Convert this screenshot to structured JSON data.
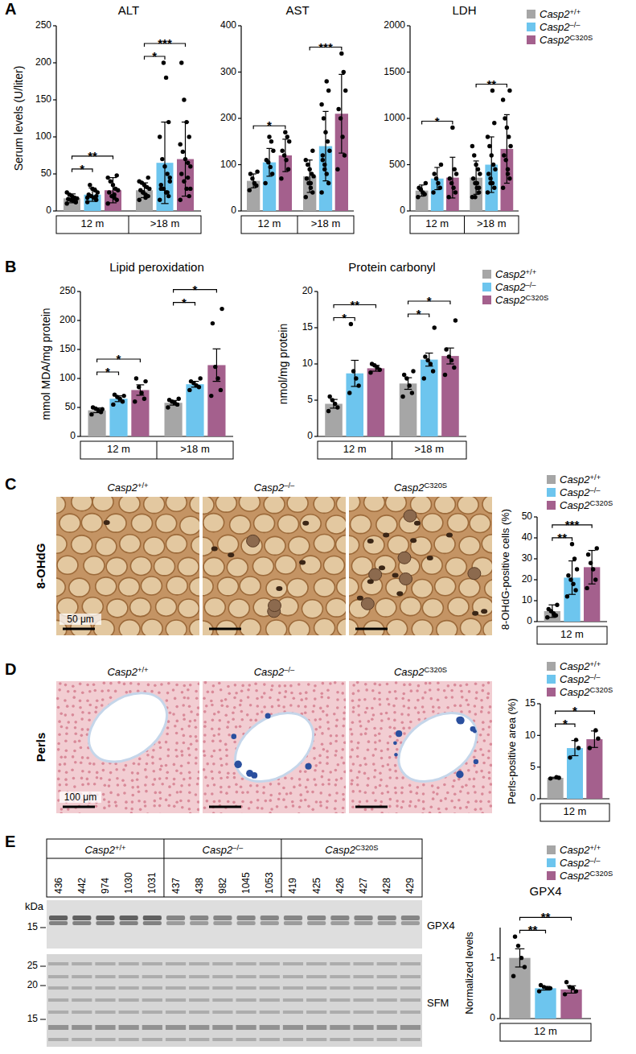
{
  "panels": [
    "A",
    "B",
    "C",
    "D",
    "E"
  ],
  "chart_data": [
    {
      "type": "bar",
      "title": "ALT",
      "ylabel": "Serum levels (U/liter)",
      "categories": [
        "12 m",
        ">18 m"
      ],
      "ylim": [
        0,
        250
      ],
      "yticks": [
        0,
        50,
        100,
        150,
        200,
        250
      ],
      "series": [
        {
          "color": "#a6a6a6",
          "values": [
            17,
            28
          ],
          "errors": [
            6,
            10
          ],
          "points": [
            [
              10,
              12,
              14,
              15,
              16,
              17,
              18,
              20,
              22,
              25,
              12,
              14
            ],
            [
              15,
              20,
              22,
              25,
              28,
              30,
              32,
              35,
              38,
              40,
              45,
              18,
              25
            ]
          ]
        },
        {
          "color": "#6dc5ee",
          "values": [
            22,
            65
          ],
          "errors": [
            9,
            55
          ],
          "points": [
            [
              12,
              15,
              18,
              20,
              22,
              25,
              28,
              30,
              35,
              18,
              20
            ],
            [
              15,
              20,
              25,
              30,
              35,
              40,
              50,
              60,
              70,
              100,
              120,
              180,
              200,
              30,
              45,
              25
            ]
          ]
        },
        {
          "color": "#a4608d",
          "values": [
            28,
            70
          ],
          "errors": [
            17,
            50
          ],
          "points": [
            [
              10,
              15,
              18,
              20,
              25,
              28,
              30,
              35,
              40,
              45,
              48,
              22
            ],
            [
              15,
              20,
              30,
              40,
              50,
              60,
              65,
              70,
              80,
              90,
              100,
              120,
              150,
              200,
              30,
              45
            ]
          ]
        }
      ],
      "annotations": [
        {
          "text": "*",
          "category": 0,
          "from": 0,
          "to": 1
        },
        {
          "text": "**",
          "category": 0,
          "from": 0,
          "to": 2
        },
        {
          "text": "*",
          "category": 1,
          "from": 0,
          "to": 1
        },
        {
          "text": "***",
          "category": 1,
          "from": 0,
          "to": 2
        }
      ]
    },
    {
      "type": "bar",
      "title": "AST",
      "categories": [
        "12 m",
        ">18 m"
      ],
      "ylim": [
        0,
        400
      ],
      "yticks": [
        0,
        100,
        200,
        300,
        400
      ],
      "series": [
        {
          "color": "#a6a6a6",
          "values": [
            65,
            75
          ],
          "errors": [
            15,
            35
          ],
          "points": [
            [
              45,
              55,
              60,
              70,
              80,
              85
            ],
            [
              30,
              40,
              50,
              60,
              70,
              75,
              80,
              90,
              100,
              110,
              130,
              60
            ]
          ]
        },
        {
          "color": "#6dc5ee",
          "values": [
            105,
            140
          ],
          "errors": [
            30,
            75
          ],
          "points": [
            [
              60,
              80,
              95,
              105,
              110,
              130,
              150,
              160
            ],
            [
              40,
              60,
              80,
              100,
              120,
              130,
              150,
              170,
              200,
              230,
              260,
              280,
              90,
              110
            ]
          ]
        },
        {
          "color": "#a4608d",
          "values": [
            120,
            210
          ],
          "errors": [
            35,
            85
          ],
          "points": [
            [
              70,
              90,
              110,
              120,
              130,
              150,
              160,
              170
            ],
            [
              90,
              120,
              160,
              200,
              220,
              260,
              300,
              340
            ]
          ]
        }
      ],
      "annotations": [
        {
          "text": "*",
          "category": 0,
          "from": 0,
          "to": 2
        },
        {
          "text": "***",
          "category": 1,
          "from": 0,
          "to": 2
        }
      ]
    },
    {
      "type": "bar",
      "title": "LDH",
      "categories": [
        "12 m",
        ">18 m"
      ],
      "ylim": [
        0,
        2000
      ],
      "yticks": [
        0,
        500,
        1000,
        1500,
        2000
      ],
      "legend": "top-right",
      "series": [
        {
          "name": "Casp2+/+",
          "color": "#a6a6a6",
          "values": [
            220,
            360
          ],
          "errors": [
            60,
            180
          ],
          "points": [
            [
              150,
              180,
              200,
              230,
              250,
              300
            ],
            [
              150,
              200,
              250,
              300,
              350,
              400,
              450,
              500,
              600,
              700,
              250,
              300,
              150
            ]
          ]
        },
        {
          "name": "Casp2–/–",
          "color": "#6dc5ee",
          "values": [
            350,
            500
          ],
          "errors": [
            120,
            300
          ],
          "points": [
            [
              200,
              250,
              300,
              350,
              400,
              500
            ],
            [
              200,
              250,
              300,
              350,
              400,
              450,
              500,
              600,
              700,
              800,
              950,
              1300,
              300
            ]
          ]
        },
        {
          "name": "Casp2C320S",
          "color": "#a4608d",
          "values": [
            360,
            670
          ],
          "errors": [
            220,
            370
          ],
          "points": [
            [
              150,
              200,
              250,
              300,
              350,
              400,
              450,
              900
            ],
            [
              250,
              350,
              450,
              550,
              600,
              700,
              800,
              900,
              1000,
              1200,
              1300,
              400
            ]
          ]
        }
      ],
      "annotations": [
        {
          "text": "*",
          "category": 0,
          "from": 0,
          "to": 2
        },
        {
          "text": "**",
          "category": 1,
          "from": 0,
          "to": 2
        }
      ]
    },
    {
      "type": "bar",
      "title": "Lipid peroxidation",
      "ylabel": "mmol MDA/mg protein",
      "categories": [
        "12 m",
        ">18 m"
      ],
      "ylim": [
        0,
        250
      ],
      "yticks": [
        0,
        50,
        100,
        150,
        200,
        250
      ],
      "series": [
        {
          "color": "#a6a6a6",
          "values": [
            45,
            58
          ],
          "errors": [
            4,
            4
          ],
          "points": [
            [
              38,
              42,
              45,
              48,
              50,
              47
            ],
            [
              50,
              55,
              58,
              60,
              63,
              65
            ]
          ]
        },
        {
          "color": "#6dc5ee",
          "values": [
            65,
            90
          ],
          "errors": [
            5,
            5
          ],
          "points": [
            [
              55,
              60,
              65,
              68,
              72,
              70
            ],
            [
              80,
              85,
              88,
              92,
              95,
              100
            ]
          ]
        },
        {
          "color": "#a4608d",
          "values": [
            80,
            123
          ],
          "errors": [
            9,
            28
          ],
          "points": [
            [
              60,
              65,
              75,
              85,
              100,
              95
            ],
            [
              70,
              80,
              100,
              120,
              195,
              220
            ]
          ]
        }
      ],
      "annotations": [
        {
          "text": "*",
          "category": 0,
          "from": 0,
          "to": 1
        },
        {
          "text": "*",
          "category": 0,
          "from": 0,
          "to": 2
        },
        {
          "text": "*",
          "category": 1,
          "from": 0,
          "to": 1
        },
        {
          "text": "*",
          "category": 1,
          "from": 0,
          "to": 2
        }
      ]
    },
    {
      "type": "bar",
      "title": "Protein carbonyl",
      "ylabel": "nmol/mg protein",
      "categories": [
        "12 m",
        ">18 m"
      ],
      "ylim": [
        0,
        20
      ],
      "yticks": [
        0,
        5,
        10,
        15,
        20
      ],
      "legend": "top-right",
      "series": [
        {
          "name": "Casp2+/+",
          "color": "#a6a6a6",
          "values": [
            4.5,
            7.3
          ],
          "errors": [
            0.6,
            0.8
          ],
          "points": [
            [
              3.5,
              4,
              4.5,
              5,
              5.5
            ],
            [
              5.5,
              6,
              7,
              8,
              8.5,
              9
            ]
          ]
        },
        {
          "name": "Casp2–/–",
          "color": "#6dc5ee",
          "values": [
            8.7,
            10.6
          ],
          "errors": [
            1.8,
            0.9
          ],
          "points": [
            [
              6,
              7,
              8,
              9,
              15.5
            ],
            [
              8,
              9,
              10,
              10.5,
              11,
              15
            ]
          ]
        },
        {
          "name": "Casp2C320S",
          "color": "#a4608d",
          "values": [
            9.4,
            11.1
          ],
          "errors": [
            0.4,
            1.1
          ],
          "points": [
            [
              8.8,
              9.2,
              9.5,
              9.8,
              10
            ],
            [
              8.5,
              9.5,
              10.5,
              11,
              12,
              16
            ]
          ]
        }
      ],
      "annotations": [
        {
          "text": "*",
          "category": 0,
          "from": 0,
          "to": 1
        },
        {
          "text": "**",
          "category": 0,
          "from": 0,
          "to": 2
        },
        {
          "text": "*",
          "category": 1,
          "from": 0,
          "to": 1
        },
        {
          "text": "*",
          "category": 1,
          "from": 0,
          "to": 2
        }
      ]
    },
    {
      "type": "bar",
      "ylabel": "8-OHdG-positive cells (%)",
      "categories": [
        "12 m"
      ],
      "ylim": [
        0,
        50
      ],
      "yticks": [
        0,
        10,
        20,
        30,
        40,
        50
      ],
      "legend": "top-right",
      "series": [
        {
          "name": "Casp2+/+",
          "color": "#a6a6a6",
          "values": [
            5
          ],
          "errors": [
            3
          ],
          "points": [
            [
              2,
              3,
              4,
              5,
              6,
              8,
              3
            ]
          ]
        },
        {
          "name": "Casp2–/–",
          "color": "#6dc5ee",
          "values": [
            21
          ],
          "errors": [
            8
          ],
          "points": [
            [
              12,
              15,
              18,
              20,
              22,
              25,
              30,
              37
            ]
          ]
        },
        {
          "name": "Casp2C320S",
          "color": "#a4608d",
          "values": [
            26
          ],
          "errors": [
            8
          ],
          "points": [
            [
              16,
              20,
              25,
              28,
              32,
              35
            ]
          ]
        }
      ],
      "annotations": [
        {
          "text": "**",
          "category": 0,
          "from": 0,
          "to": 1
        },
        {
          "text": "***",
          "category": 0,
          "from": 0,
          "to": 2
        }
      ]
    },
    {
      "type": "bar",
      "ylabel": "Perls-positive area (%)",
      "categories": [
        "12 m"
      ],
      "ylim": [
        0,
        15
      ],
      "yticks": [
        0,
        5,
        10,
        15
      ],
      "legend": "top-right",
      "series": [
        {
          "name": "Casp2+/+",
          "color": "#a6a6a6",
          "values": [
            3.3
          ],
          "errors": [
            0.1
          ],
          "points": [
            [
              3.2,
              3.3,
              3.4
            ]
          ]
        },
        {
          "name": "Casp2–/–",
          "color": "#6dc5ee",
          "values": [
            8
          ],
          "errors": [
            1.2
          ],
          "points": [
            [
              6.5,
              8,
              9.3
            ]
          ]
        },
        {
          "name": "Casp2C320S",
          "color": "#a4608d",
          "values": [
            9.4
          ],
          "errors": [
            1.3
          ],
          "points": [
            [
              8,
              9.5,
              10.8
            ]
          ]
        }
      ],
      "annotations": [
        {
          "text": "*",
          "category": 0,
          "from": 0,
          "to": 1
        },
        {
          "text": "*",
          "category": 0,
          "from": 0,
          "to": 2
        }
      ]
    },
    {
      "type": "bar",
      "title": "GPX4",
      "ylabel": "Normalized levels",
      "categories": [
        "12 m"
      ],
      "ylim": [
        0,
        1.5
      ],
      "yticks": [
        0,
        1
      ],
      "legend": "top-right",
      "series": [
        {
          "name": "Casp2+/+",
          "color": "#a6a6a6",
          "values": [
            1.0
          ],
          "errors": [
            0.15
          ],
          "points": [
            [
              0.7,
              0.85,
              1.0,
              1.2,
              1.35
            ]
          ]
        },
        {
          "name": "Casp2–/–",
          "color": "#6dc5ee",
          "values": [
            0.5
          ],
          "errors": [
            0.03
          ],
          "points": [
            [
              0.45,
              0.5,
              0.5,
              0.52,
              0.55
            ]
          ]
        },
        {
          "name": "Casp2C320S",
          "color": "#a4608d",
          "values": [
            0.48
          ],
          "errors": [
            0.06
          ],
          "points": [
            [
              0.4,
              0.45,
              0.5,
              0.52,
              0.6
            ]
          ]
        }
      ],
      "annotations": [
        {
          "text": "**",
          "category": 0,
          "from": 0,
          "to": 1
        },
        {
          "text": "**",
          "category": 0,
          "from": 0,
          "to": 2
        }
      ]
    }
  ],
  "micrographs": [
    {
      "stain": "8-OHdG",
      "columns": [
        "Casp2+/+",
        "Casp2–/–",
        "Casp2C320S"
      ],
      "scale_bar": "50 μm"
    },
    {
      "stain": "Perls",
      "columns": [
        "Casp2+/+",
        "Casp2–/–",
        "Casp2C320S"
      ],
      "scale_bar": "100 μm"
    }
  ],
  "blot": {
    "groups": [
      {
        "label": "Casp2+/+",
        "samples": [
          "436",
          "442",
          "974",
          "1030",
          "1031"
        ]
      },
      {
        "label": "Casp2–/–",
        "samples": [
          "437",
          "438",
          "982",
          "1045",
          "1053"
        ]
      },
      {
        "label": "Casp2C320S",
        "samples": [
          "419",
          "425",
          "426",
          "427",
          "428",
          "429"
        ]
      }
    ],
    "unit": "kDa",
    "blots": [
      {
        "label": "GPX4",
        "markers": [
          "15"
        ]
      },
      {
        "label": "SFM",
        "markers": [
          "25",
          "20",
          "15"
        ]
      }
    ]
  }
}
